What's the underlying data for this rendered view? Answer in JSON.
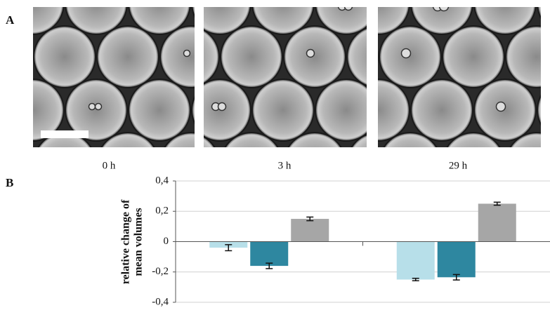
{
  "panel_labels": [
    "A",
    "B"
  ],
  "image_captions": [
    "0 h",
    "3 h",
    "29 h"
  ],
  "chart_data": {
    "type": "bar",
    "ylabel": [
      "relative change of",
      "mean volumes"
    ],
    "categories": [
      null,
      null
    ],
    "series": [
      {
        "color": "#b7dfe9",
        "values": [
          -0.04,
          -0.25
        ],
        "errors": [
          0.02,
          0.008
        ]
      },
      {
        "color": "#2e87a0",
        "values": [
          -0.16,
          -0.235
        ],
        "errors": [
          0.018,
          0.018
        ]
      },
      {
        "color": "#a6a6a6",
        "values": [
          0.15,
          0.25
        ],
        "errors": [
          0.012,
          0.01
        ]
      }
    ],
    "ylim": [
      -0.4,
      0.4
    ],
    "yticks": [
      {
        "value": -0.4,
        "label": "-0,4"
      },
      {
        "value": -0.2,
        "label": "-0,2"
      },
      0,
      {
        "value": 0.2,
        "label": "0,2"
      },
      {
        "value": 0.4,
        "label": "0,4"
      }
    ],
    "grid": true
  }
}
